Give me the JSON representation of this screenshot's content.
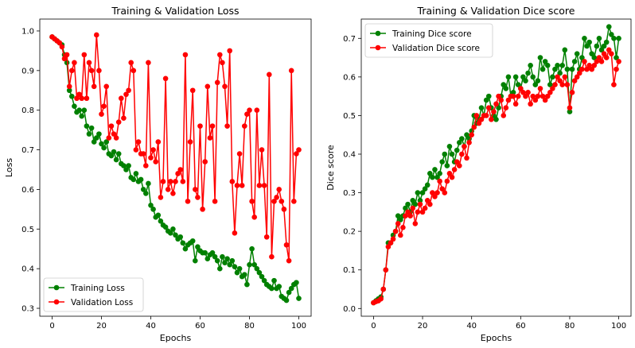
{
  "colors": {
    "train": "#008000",
    "val": "#ff0000"
  },
  "chart_data": [
    {
      "type": "line",
      "title": "Training & Validation Loss",
      "xlabel": "Epochs",
      "ylabel": "Loss",
      "xlim": [
        -5,
        105
      ],
      "ylim": [
        0.28,
        1.03
      ],
      "xticks": [
        0,
        20,
        40,
        60,
        80,
        100
      ],
      "yticks": [
        0.3,
        0.4,
        0.5,
        0.6,
        0.7,
        0.8,
        0.9,
        1.0
      ],
      "xtick_labels": [
        "0",
        "20",
        "40",
        "60",
        "80",
        "100"
      ],
      "ytick_labels": [
        "0.3",
        "0.4",
        "0.5",
        "0.6",
        "0.7",
        "0.8",
        "0.9",
        "1.0"
      ],
      "grid": false,
      "legend_position": "lower-left",
      "x": [
        0,
        1,
        2,
        3,
        4,
        5,
        6,
        7,
        8,
        9,
        10,
        11,
        12,
        13,
        14,
        15,
        16,
        17,
        18,
        19,
        20,
        21,
        22,
        23,
        24,
        25,
        26,
        27,
        28,
        29,
        30,
        31,
        32,
        33,
        34,
        35,
        36,
        37,
        38,
        39,
        40,
        41,
        42,
        43,
        44,
        45,
        46,
        47,
        48,
        49,
        50,
        51,
        52,
        53,
        54,
        55,
        56,
        57,
        58,
        59,
        60,
        61,
        62,
        63,
        64,
        65,
        66,
        67,
        68,
        69,
        70,
        71,
        72,
        73,
        74,
        75,
        76,
        77,
        78,
        79,
        80,
        81,
        82,
        83,
        84,
        85,
        86,
        87,
        88,
        89,
        90,
        91,
        92,
        93,
        94,
        95,
        96,
        97,
        98,
        99,
        100
      ],
      "series": [
        {
          "name": "Training Loss",
          "color_key": "train",
          "values": [
            0.985,
            0.98,
            0.975,
            0.97,
            0.965,
            0.94,
            0.92,
            0.85,
            0.835,
            0.81,
            0.795,
            0.8,
            0.785,
            0.8,
            0.76,
            0.74,
            0.755,
            0.72,
            0.73,
            0.74,
            0.715,
            0.705,
            0.72,
            0.69,
            0.685,
            0.695,
            0.675,
            0.69,
            0.665,
            0.66,
            0.65,
            0.66,
            0.63,
            0.625,
            0.64,
            0.62,
            0.625,
            0.6,
            0.59,
            0.615,
            0.56,
            0.55,
            0.53,
            0.535,
            0.52,
            0.51,
            0.505,
            0.495,
            0.49,
            0.5,
            0.485,
            0.475,
            0.48,
            0.465,
            0.45,
            0.46,
            0.465,
            0.47,
            0.42,
            0.455,
            0.445,
            0.44,
            0.44,
            0.425,
            0.435,
            0.44,
            0.43,
            0.42,
            0.4,
            0.43,
            0.415,
            0.425,
            0.41,
            0.42,
            0.405,
            0.39,
            0.4,
            0.38,
            0.385,
            0.36,
            0.41,
            0.45,
            0.41,
            0.4,
            0.39,
            0.38,
            0.37,
            0.36,
            0.355,
            0.35,
            0.37,
            0.35,
            0.355,
            0.33,
            0.325,
            0.32,
            0.34,
            0.35,
            0.36,
            0.365,
            0.325
          ]
        },
        {
          "name": "Validation Loss",
          "color_key": "val",
          "values": [
            0.985,
            0.98,
            0.975,
            0.97,
            0.96,
            0.93,
            0.94,
            0.86,
            0.9,
            0.92,
            0.83,
            0.84,
            0.83,
            0.94,
            0.83,
            0.92,
            0.9,
            0.86,
            0.99,
            0.9,
            0.79,
            0.81,
            0.86,
            0.73,
            0.76,
            0.74,
            0.73,
            0.77,
            0.83,
            0.78,
            0.84,
            0.85,
            0.92,
            0.9,
            0.7,
            0.72,
            0.69,
            0.69,
            0.66,
            0.92,
            0.68,
            0.7,
            0.67,
            0.72,
            0.58,
            0.62,
            0.88,
            0.6,
            0.62,
            0.59,
            0.62,
            0.64,
            0.65,
            0.62,
            0.94,
            0.57,
            0.72,
            0.85,
            0.6,
            0.58,
            0.76,
            0.55,
            0.67,
            0.86,
            0.73,
            0.76,
            0.57,
            0.87,
            0.94,
            0.92,
            0.86,
            0.76,
            0.95,
            0.62,
            0.49,
            0.61,
            0.69,
            0.61,
            0.76,
            0.79,
            0.8,
            0.57,
            0.53,
            0.8,
            0.61,
            0.7,
            0.61,
            0.48,
            0.89,
            0.43,
            0.57,
            0.58,
            0.6,
            0.57,
            0.55,
            0.46,
            0.42,
            0.9,
            0.57,
            0.69,
            0.7
          ]
        }
      ]
    },
    {
      "type": "line",
      "title": "Training & Validation Dice score",
      "xlabel": "Epochs",
      "ylabel": "Dice score",
      "xlim": [
        -5,
        105
      ],
      "ylim": [
        -0.02,
        0.75
      ],
      "xticks": [
        0,
        20,
        40,
        60,
        80,
        100
      ],
      "yticks": [
        0.0,
        0.1,
        0.2,
        0.3,
        0.4,
        0.5,
        0.6,
        0.7
      ],
      "xtick_labels": [
        "0",
        "20",
        "40",
        "60",
        "80",
        "100"
      ],
      "ytick_labels": [
        "0.0",
        "0.1",
        "0.2",
        "0.3",
        "0.4",
        "0.5",
        "0.6",
        "0.7"
      ],
      "grid": false,
      "legend_position": "top-left",
      "x": [
        0,
        1,
        2,
        3,
        4,
        5,
        6,
        7,
        8,
        9,
        10,
        11,
        12,
        13,
        14,
        15,
        16,
        17,
        18,
        19,
        20,
        21,
        22,
        23,
        24,
        25,
        26,
        27,
        28,
        29,
        30,
        31,
        32,
        33,
        34,
        35,
        36,
        37,
        38,
        39,
        40,
        41,
        42,
        43,
        44,
        45,
        46,
        47,
        48,
        49,
        50,
        51,
        52,
        53,
        54,
        55,
        56,
        57,
        58,
        59,
        60,
        61,
        62,
        63,
        64,
        65,
        66,
        67,
        68,
        69,
        70,
        71,
        72,
        73,
        74,
        75,
        76,
        77,
        78,
        79,
        80,
        81,
        82,
        83,
        84,
        85,
        86,
        87,
        88,
        89,
        90,
        91,
        92,
        93,
        94,
        95,
        96,
        97,
        98,
        99,
        100
      ],
      "series": [
        {
          "name": "Training Dice score",
          "color_key": "train",
          "values": [
            0.015,
            0.02,
            0.025,
            0.03,
            0.05,
            0.1,
            0.17,
            0.17,
            0.19,
            0.2,
            0.24,
            0.23,
            0.24,
            0.26,
            0.27,
            0.25,
            0.28,
            0.27,
            0.3,
            0.28,
            0.3,
            0.31,
            0.32,
            0.35,
            0.34,
            0.36,
            0.34,
            0.35,
            0.38,
            0.4,
            0.37,
            0.42,
            0.4,
            0.38,
            0.41,
            0.43,
            0.44,
            0.42,
            0.45,
            0.44,
            0.46,
            0.5,
            0.48,
            0.49,
            0.52,
            0.5,
            0.54,
            0.55,
            0.52,
            0.5,
            0.49,
            0.52,
            0.55,
            0.58,
            0.57,
            0.6,
            0.55,
            0.56,
            0.6,
            0.58,
            0.57,
            0.6,
            0.59,
            0.61,
            0.63,
            0.6,
            0.58,
            0.59,
            0.65,
            0.62,
            0.64,
            0.63,
            0.58,
            0.6,
            0.62,
            0.63,
            0.61,
            0.63,
            0.67,
            0.62,
            0.51,
            0.62,
            0.64,
            0.66,
            0.62,
            0.65,
            0.7,
            0.68,
            0.69,
            0.66,
            0.65,
            0.68,
            0.7,
            0.67,
            0.68,
            0.69,
            0.73,
            0.71,
            0.7,
            0.65,
            0.7
          ]
        },
        {
          "name": "Validation Dice score",
          "color_key": "val",
          "values": [
            0.015,
            0.018,
            0.02,
            0.025,
            0.05,
            0.1,
            0.16,
            0.17,
            0.18,
            0.2,
            0.22,
            0.19,
            0.21,
            0.24,
            0.25,
            0.24,
            0.26,
            0.22,
            0.25,
            0.27,
            0.25,
            0.26,
            0.28,
            0.27,
            0.3,
            0.29,
            0.3,
            0.33,
            0.31,
            0.3,
            0.33,
            0.35,
            0.34,
            0.36,
            0.38,
            0.37,
            0.4,
            0.42,
            0.39,
            0.43,
            0.45,
            0.47,
            0.5,
            0.48,
            0.49,
            0.5,
            0.5,
            0.52,
            0.49,
            0.51,
            0.53,
            0.55,
            0.54,
            0.5,
            0.52,
            0.54,
            0.55,
            0.55,
            0.53,
            0.55,
            0.57,
            0.56,
            0.55,
            0.56,
            0.53,
            0.55,
            0.54,
            0.55,
            0.57,
            0.55,
            0.54,
            0.55,
            0.56,
            0.57,
            0.58,
            0.6,
            0.59,
            0.58,
            0.6,
            0.58,
            0.52,
            0.56,
            0.59,
            0.6,
            0.61,
            0.62,
            0.64,
            0.62,
            0.63,
            0.62,
            0.63,
            0.64,
            0.65,
            0.64,
            0.66,
            0.65,
            0.67,
            0.66,
            0.58,
            0.62,
            0.64
          ]
        }
      ]
    }
  ]
}
